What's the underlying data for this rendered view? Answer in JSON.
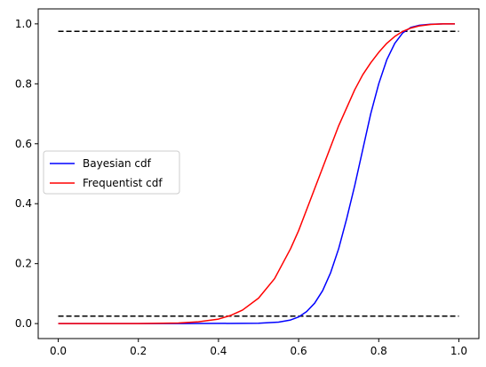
{
  "chart_data": {
    "type": "line",
    "xlim": [
      -0.05,
      1.05
    ],
    "ylim": [
      -0.05,
      1.05
    ],
    "x_ticks": [
      0.0,
      0.2,
      0.4,
      0.6,
      0.8,
      1.0
    ],
    "x_tick_labels": [
      "0.0",
      "0.2",
      "0.4",
      "0.6",
      "0.8",
      "1.0"
    ],
    "y_ticks": [
      0.0,
      0.2,
      0.4,
      0.6,
      0.8,
      1.0
    ],
    "y_tick_labels": [
      "0.0",
      "0.2",
      "0.4",
      "0.6",
      "0.8",
      "1.0"
    ],
    "grid": false,
    "legend_position": "center-left",
    "series": [
      {
        "name": "Bayesian cdf",
        "color": "#0000ff",
        "x": [
          0.0,
          0.3,
          0.5,
          0.55,
          0.58,
          0.6,
          0.62,
          0.64,
          0.66,
          0.68,
          0.7,
          0.72,
          0.74,
          0.76,
          0.78,
          0.8,
          0.82,
          0.84,
          0.86,
          0.88,
          0.9,
          0.93,
          0.96,
          0.99
        ],
        "y": [
          0.0,
          0.0,
          0.001,
          0.005,
          0.012,
          0.022,
          0.04,
          0.068,
          0.11,
          0.17,
          0.25,
          0.35,
          0.46,
          0.58,
          0.7,
          0.8,
          0.88,
          0.935,
          0.97,
          0.988,
          0.995,
          0.999,
          1.0,
          1.0
        ]
      },
      {
        "name": "Frequentist cdf",
        "color": "#ff0000",
        "x": [
          0.0,
          0.2,
          0.3,
          0.35,
          0.4,
          0.43,
          0.46,
          0.5,
          0.54,
          0.58,
          0.6,
          0.62,
          0.64,
          0.66,
          0.68,
          0.7,
          0.72,
          0.74,
          0.76,
          0.78,
          0.8,
          0.82,
          0.84,
          0.86,
          0.88,
          0.9,
          0.93,
          0.96,
          0.99
        ],
        "y": [
          0.0,
          0.0,
          0.002,
          0.006,
          0.015,
          0.027,
          0.045,
          0.085,
          0.15,
          0.25,
          0.31,
          0.38,
          0.45,
          0.52,
          0.59,
          0.66,
          0.72,
          0.78,
          0.83,
          0.87,
          0.905,
          0.935,
          0.958,
          0.975,
          0.986,
          0.993,
          0.998,
          1.0,
          1.0
        ]
      }
    ],
    "reference_lines": [
      {
        "y": 0.025,
        "x_from": 0.0,
        "x_to": 1.0,
        "style": "dashed",
        "color": "#000000"
      },
      {
        "y": 0.975,
        "x_from": 0.0,
        "x_to": 1.0,
        "style": "dashed",
        "color": "#000000"
      }
    ]
  }
}
